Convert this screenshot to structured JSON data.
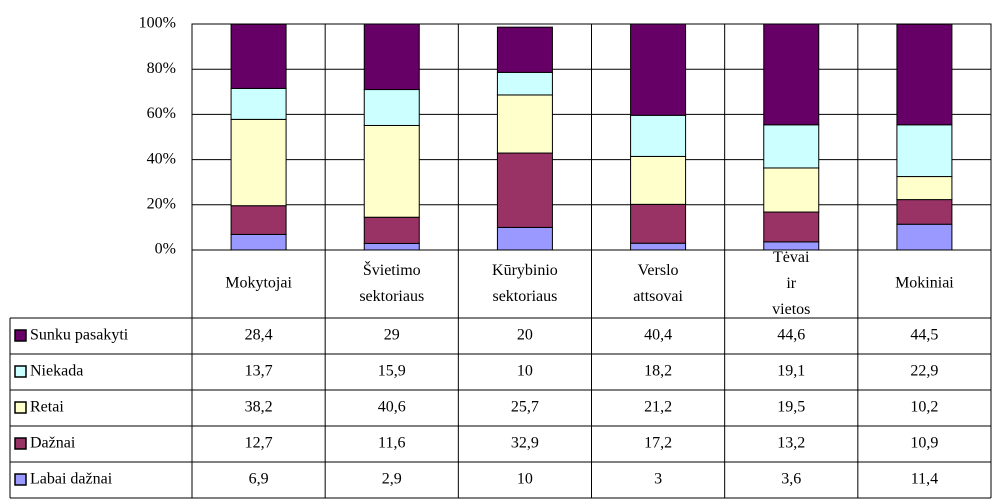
{
  "chart_data": {
    "type": "stacked_bar",
    "categories": [
      "Mokytojai",
      "Švietimo sektoriaus",
      "Kūrybinio sektoriaus",
      "Verslo attsovai",
      "Tėvai ir vietos",
      "Mokiniai"
    ],
    "series": [
      {
        "name": "Sunku pasakyti",
        "color": "#660066",
        "values": [
          28.4,
          29,
          20,
          40.4,
          44.6,
          44.5
        ],
        "value_labels": [
          "28,4",
          "29",
          "20",
          "40,4",
          "44,6",
          "44,5"
        ]
      },
      {
        "name": "Niekada",
        "color": "#ccffff",
        "values": [
          13.7,
          15.9,
          10,
          18.2,
          19.1,
          22.9
        ],
        "value_labels": [
          "13,7",
          "15,9",
          "10",
          "18,2",
          "19,1",
          "22,9"
        ]
      },
      {
        "name": "Retai",
        "color": "#ffffcc",
        "values": [
          38.2,
          40.6,
          25.7,
          21.2,
          19.5,
          10.2
        ],
        "value_labels": [
          "38,2",
          "40,6",
          "25,7",
          "21,2",
          "19,5",
          "10,2"
        ]
      },
      {
        "name": "Dažnai",
        "color": "#993366",
        "values": [
          12.7,
          11.6,
          32.9,
          17.2,
          13.2,
          10.9
        ],
        "value_labels": [
          "12,7",
          "11,6",
          "32,9",
          "17,2",
          "13,2",
          "10,9"
        ]
      },
      {
        "name": "Labai dažnai",
        "color": "#9999ff",
        "values": [
          6.9,
          2.9,
          10,
          3,
          3.6,
          11.4
        ],
        "value_labels": [
          "6,9",
          "2,9",
          "10",
          "3",
          "3,6",
          "11,4"
        ]
      }
    ],
    "ylim": [
      0,
      100
    ],
    "yticks": [
      {
        "value": 0,
        "label": "0%"
      },
      {
        "value": 20,
        "label": "20%"
      },
      {
        "value": 40,
        "label": "40%"
      },
      {
        "value": 60,
        "label": "60%"
      },
      {
        "value": 80,
        "label": "80%"
      },
      {
        "value": 100,
        "label": "100%"
      }
    ],
    "grid": true
  }
}
